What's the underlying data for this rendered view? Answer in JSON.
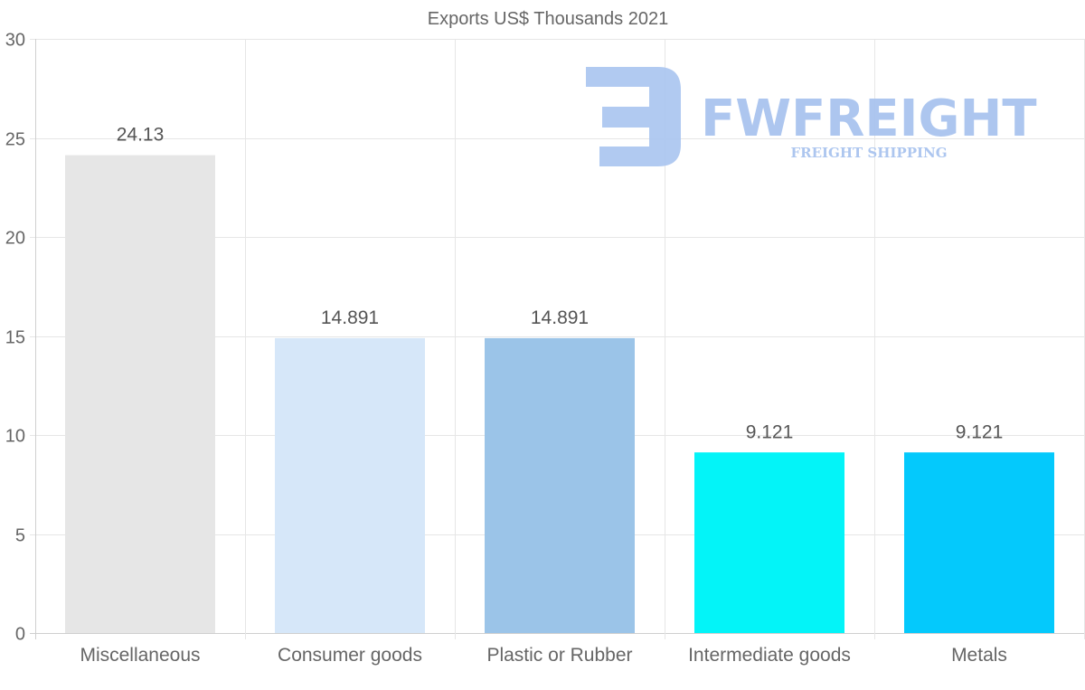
{
  "chart_data": {
    "type": "bar",
    "title": "Exports US$ Thousands 2021",
    "categories": [
      "Miscellaneous",
      "Consumer goods",
      "Plastic or Rubber",
      "Intermediate goods",
      "Metals"
    ],
    "values": [
      24.13,
      14.891,
      14.891,
      9.121,
      9.121
    ],
    "value_labels": [
      "24.13",
      "14.891",
      "14.891",
      "9.121",
      "9.121"
    ],
    "colors": [
      "#e6e6e6",
      "#d6e7f9",
      "#9bc4e8",
      "#03f4f8",
      "#04c9fc"
    ],
    "xlabel": "",
    "ylabel": "",
    "ylim": [
      0,
      30
    ],
    "yticks": [
      0,
      5,
      10,
      15,
      20,
      25,
      30
    ],
    "grid": true,
    "legend": "none"
  },
  "watermark": {
    "name": "FWFREIGHT",
    "tagline": "FREIGHT SHIPPING",
    "color": "#a9c4ef"
  }
}
